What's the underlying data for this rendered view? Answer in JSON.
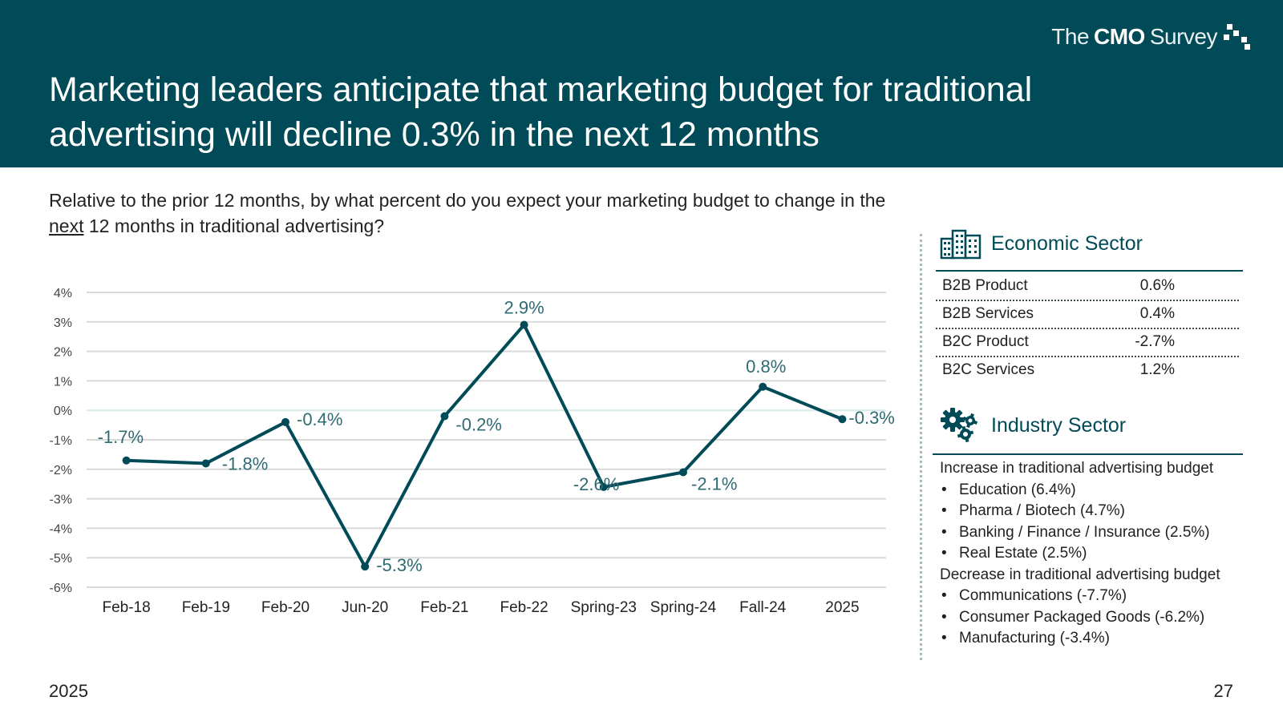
{
  "header": {
    "title": "Marketing leaders anticipate that marketing budget for traditional advertising will decline 0.3% in the next 12 months",
    "logo": {
      "the": "The",
      "cmo": "CMO",
      "survey": "Survey"
    }
  },
  "question": {
    "part1": "Relative to the prior 12 months, by what percent do you expect your marketing budget to change in the ",
    "emphasis": "next",
    "part2": " 12 months in traditional advertising?"
  },
  "chart_data": {
    "type": "line",
    "categories": [
      "Feb-18",
      "Feb-19",
      "Feb-20",
      "Jun-20",
      "Feb-21",
      "Feb-22",
      "Spring-23",
      "Spring-24",
      "Fall-24",
      "2025"
    ],
    "values": [
      -1.7,
      -1.8,
      -0.4,
      -5.3,
      -0.2,
      2.9,
      -2.6,
      -2.1,
      0.8,
      -0.3
    ],
    "data_labels": [
      "-1.7%",
      "-1.8%",
      "-0.4%",
      "-5.3%",
      "-0.2%",
      "2.9%",
      "-2.6%",
      "-2.1%",
      "0.8%",
      "-0.3%"
    ],
    "yticks": [
      4,
      3,
      2,
      1,
      0,
      -1,
      -2,
      -3,
      -4,
      -5,
      -6
    ],
    "ytick_labels": [
      "4%",
      "3%",
      "2%",
      "1%",
      "0%",
      "-1%",
      "-2%",
      "-3%",
      "-4%",
      "-5%",
      "-6%"
    ],
    "ylim": [
      -6,
      4
    ],
    "title": "",
    "xlabel": "",
    "ylabel": "",
    "grid": true,
    "line_color": "#004b57",
    "label_color": "#2f6b73"
  },
  "economic_sector": {
    "heading": "Economic Sector",
    "rows": [
      {
        "label": "B2B Product",
        "value": "0.6%"
      },
      {
        "label": "B2B Services",
        "value": "0.4%"
      },
      {
        "label": "B2C Product",
        "value": "-2.7%"
      },
      {
        "label": "B2C Services",
        "value": "1.2%"
      }
    ]
  },
  "industry_sector": {
    "heading": "Industry Sector",
    "increase_heading": "Increase in traditional advertising budget",
    "increase_items": [
      "Education (6.4%)",
      "Pharma / Biotech (4.7%)",
      "Banking / Finance / Insurance (2.5%)",
      "Real Estate (2.5%)"
    ],
    "decrease_heading": "Decrease in traditional advertising budget",
    "decrease_items": [
      "Communications (-7.7%)",
      "Consumer Packaged Goods (-6.2%)",
      "Manufacturing (-3.4%)"
    ]
  },
  "footer": {
    "year": "2025",
    "page": "27"
  },
  "colors": {
    "header_bg": "#004b57",
    "accent": "#004b57"
  }
}
